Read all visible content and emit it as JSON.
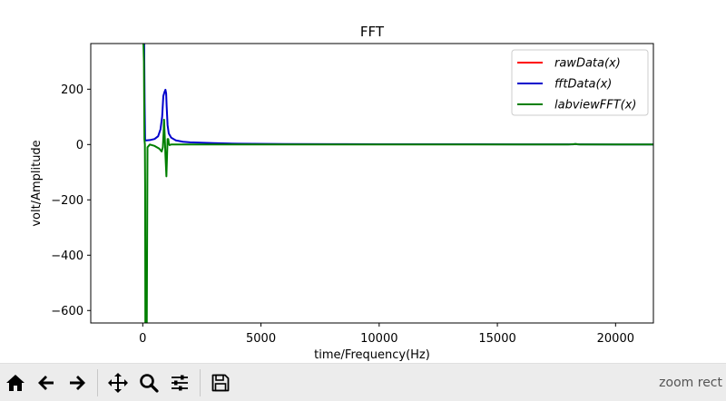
{
  "chart_data": {
    "type": "line",
    "title": "FFT",
    "xlabel": "time/Frequency(Hz)",
    "ylabel": "volt/Amplitude",
    "xlim": [
      -2200,
      21600
    ],
    "ylim": [
      -645,
      365
    ],
    "xticks": [
      0,
      5000,
      10000,
      15000,
      20000
    ],
    "xtick_labels": [
      "0",
      "5000",
      "10000",
      "15000",
      "20000"
    ],
    "yticks": [
      200,
      0,
      -200,
      -400,
      -600
    ],
    "ytick_labels": [
      "200",
      "0",
      "−200",
      "−400",
      "−600"
    ],
    "grid": false,
    "legend_position": "top-right",
    "series": [
      {
        "name": "rawData(x)",
        "color": "#ff0000",
        "x": [],
        "y": []
      },
      {
        "name": "fftData(x)",
        "color": "#0000cc",
        "x": [
          0,
          20,
          40,
          60,
          80,
          100,
          150,
          300,
          500,
          650,
          750,
          820,
          870,
          920,
          960,
          990,
          1010,
          1050,
          1100,
          1200,
          1400,
          1700,
          2000,
          3000,
          4000,
          6000,
          8000,
          10000,
          12000,
          14000,
          16000,
          18000,
          18200,
          18300,
          18400,
          18600,
          20000,
          21600
        ],
        "y": [
          365,
          365,
          365,
          365,
          150,
          15,
          15,
          16,
          20,
          30,
          55,
          100,
          175,
          190,
          198,
          185,
          140,
          70,
          40,
          25,
          15,
          10,
          8,
          5,
          3,
          2,
          1.5,
          1,
          1,
          0.8,
          0.6,
          0.5,
          0.5,
          2,
          0.5,
          0.4,
          0.3,
          0.2
        ]
      },
      {
        "name": "labviewFFT(x)",
        "color": "#007f00",
        "x": [
          0,
          10,
          30,
          50,
          70,
          90,
          100,
          110,
          140,
          170,
          200,
          250,
          300,
          500,
          700,
          800,
          850,
          880,
          900,
          930,
          960,
          1000,
          1020,
          1050,
          1080,
          1100,
          1130,
          1200,
          1400,
          1700,
          2000,
          5000,
          10000,
          15000,
          18000,
          18300,
          18500,
          21600
        ],
        "y": [
          365,
          365,
          365,
          300,
          20,
          0,
          -150,
          -645,
          -645,
          -645,
          -10,
          -5,
          0,
          -5,
          -15,
          -25,
          -10,
          40,
          90,
          30,
          -40,
          -115,
          -60,
          20,
          20,
          5,
          -2,
          0,
          0,
          0,
          0,
          0,
          0,
          0,
          0,
          2,
          0,
          0
        ]
      }
    ]
  },
  "toolbar": {
    "buttons": [
      {
        "icon": "home-icon"
      },
      {
        "icon": "back-arrow-icon"
      },
      {
        "icon": "forward-arrow-icon"
      },
      {
        "icon": "pan-move-icon"
      },
      {
        "icon": "zoom-magnifier-icon"
      },
      {
        "icon": "configure-subplots-icon"
      },
      {
        "icon": "save-floppy-icon"
      }
    ],
    "status": "zoom rect"
  }
}
